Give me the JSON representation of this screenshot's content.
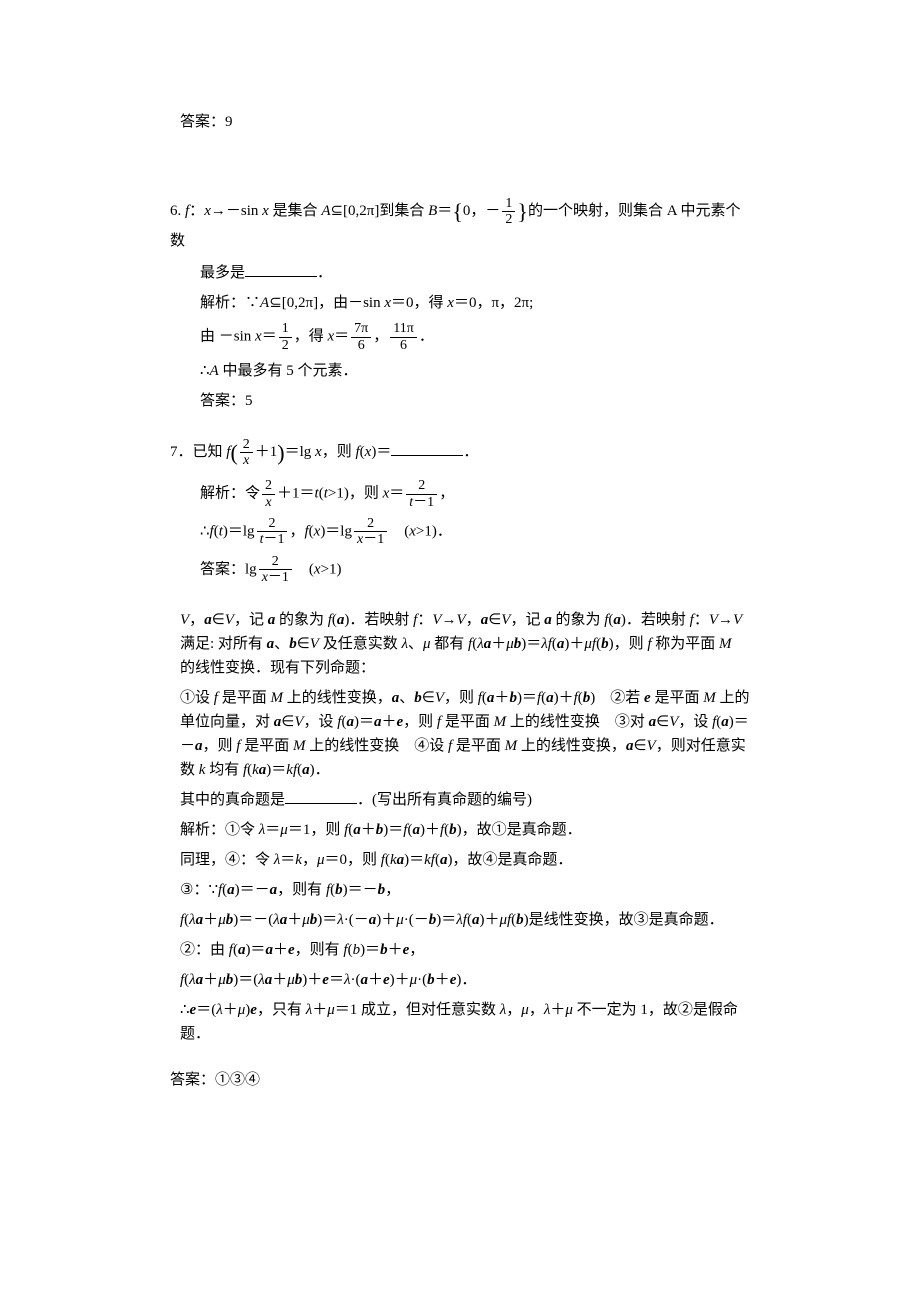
{
  "top_answer": {
    "label": "答案：",
    "value": "9"
  },
  "q6": {
    "prefix": "6. ",
    "line1_a": "f：x→－sin x 是集合 ",
    "line1_b": "A⊆[0,2π]到集合 ",
    "line1_c": "B＝",
    "set_left": "{",
    "set_inner_a": "0，－",
    "set_frac_num": "1",
    "set_frac_den": "2",
    "set_right": "}",
    "line1_d": "的一个映射，则集合 A 中元素个数",
    "line2": "最多是",
    "line2_suffix": "．",
    "sol_label": "解析：",
    "sol1_a": "∵A⊆[0,2π]，由－sin x＝0，得 x＝0，π，2π;",
    "sol2_a": "由 －sin x＝",
    "sol2_frac1_num": "1",
    "sol2_frac1_den": "2",
    "sol2_b": "，得 x＝",
    "sol2_frac2_num": "7π",
    "sol2_frac2_den": "6",
    "sol2_c": "，",
    "sol2_frac3_num": "11π",
    "sol2_frac3_den": "6",
    "sol2_d": "．",
    "sol3": "∴A 中最多有 5 个元素．",
    "ans_label": "答案：",
    "ans_value": "5"
  },
  "q7": {
    "prefix": "7．",
    "line1_a": "已知 f",
    "paren_l": "(",
    "inner_frac_num": "2",
    "inner_frac_den": "x",
    "inner_b": "＋1",
    "paren_r": ")",
    "line1_b": "＝lg x，则 f(x)＝",
    "line1_suffix": "．",
    "sol_label": "解析：",
    "sol1_a": "令",
    "sol1_frac1_num": "2",
    "sol1_frac1_den": "x",
    "sol1_b": "＋1＝t(t>1)，则 x＝",
    "sol1_frac2_num": "2",
    "sol1_frac2_den": "t－1",
    "sol1_c": "，",
    "sol2_a": "∴f(t)＝lg",
    "sol2_frac1_num": "2",
    "sol2_frac1_den": "t－1",
    "sol2_b": "，f(x)＝lg",
    "sol2_frac2_num": "2",
    "sol2_frac2_den": "x－1",
    "sol2_c": "　(x>1)．",
    "ans_label": "答案：",
    "ans_a": "lg",
    "ans_frac_num": "2",
    "ans_frac_den": "x－1",
    "ans_b": "　(x>1)"
  },
  "passage": {
    "p1": "V，a∈V，记 a 的象为 f(a)．若映射 f：V→V，a∈V，记 a 的象为 f(a)．若映射 f：V→V 满足: 对所有 a、b∈V 及任意实数 λ、μ 都有 f(λa＋μb)＝λf(a)＋μf(b)，则 f 称为平面 M 的线性变换．现有下列命题：",
    "p2": "①设 f 是平面 M 上的线性变换，a、b∈V，则 f(a＋b)＝f(a)＋f(b)　②若 e 是平面 M 上的单位向量，对 a∈V，设 f(a)＝a＋e，则 f 是平面 M 上的线性变换　③对 a∈V，设 f(a)＝－a，则 f 是平面 M 上的线性变换　④设 f 是平面 M 上的线性变换，a∈V，则对任意实数 k 均有 f(ka)＝kf(a)．",
    "p3_a": "其中的真命题是",
    "p3_b": "．(写出所有真命题的编号)",
    "sol_label": "解析：",
    "s1": "①令 λ＝μ＝1，则 f(a＋b)＝f(a)＋f(b)，故①是真命题．",
    "s2": "同理，④：令 λ＝k，μ＝0，则 f(ka)＝kf(a)，故④是真命题．",
    "s3": "③：∵f(a)＝－a，则有 f(b)＝－b，",
    "s4": "f(λa＋μb)＝－(λa＋μb)＝λ·(－a)＋μ·(－b)＝λf(a)＋μf(b)是线性变换，故③是真命题．",
    "s5": "②：由 f(a)＝a＋e，则有 f(b)＝b＋e，",
    "s6": "f(λa＋μb)＝(λa＋μb)＋e＝λ·(a＋e)＋μ·(b＋e)．",
    "s7": "∴e＝(λ＋μ)e，只有 λ＋μ＝1 成立，但对任意实数 λ，μ，λ＋μ 不一定为 1，故②是假命题．",
    "ans_label": "答案：",
    "ans_value": "①③④"
  }
}
